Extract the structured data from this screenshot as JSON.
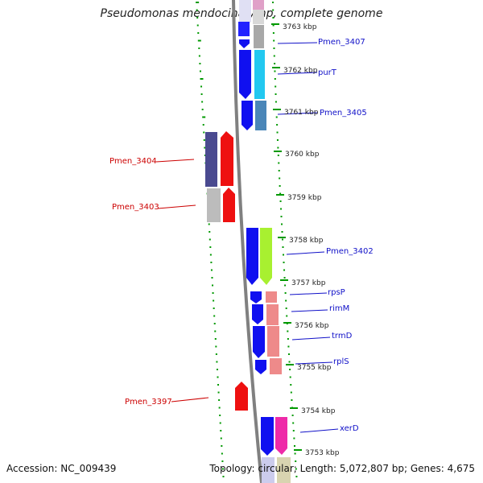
{
  "title": "Pseudomonas mendocina ymp, complete genome",
  "footer": {
    "accession": "Accession: NC_009439",
    "topology": "Topology: circular; Length: 5,072,807 bp; Genes: 4,675"
  },
  "colors": {
    "forward_label": "#1010c8",
    "reverse_label": "#cc0000",
    "backbone": "#808080",
    "scale_ticks": "#009900"
  },
  "scale_labels": [
    "3763 kbp",
    "3762 kbp",
    "3761 kbp",
    "3760 kbp",
    "3759 kbp",
    "3758 kbp",
    "3757 kbp",
    "3756 kbp",
    "3755 kbp",
    "3754 kbp",
    "3753 kbp"
  ],
  "genes_forward": [
    {
      "name": "Pmen_3407",
      "color": "#a8a8a8"
    },
    {
      "name": "purT",
      "color": "#22c8f0"
    },
    {
      "name": "Pmen_3405",
      "color": "#4a86b8"
    },
    {
      "name": "Pmen_3402",
      "color": "#a8f030"
    },
    {
      "name": "rpsP",
      "color": "#ee8a8a"
    },
    {
      "name": "rimM",
      "color": "#ee8a8a"
    },
    {
      "name": "trmD",
      "color": "#ee8a8a"
    },
    {
      "name": "rplS",
      "color": "#ee8a8a"
    },
    {
      "name": "xerD",
      "color": "#ee2aa8"
    }
  ],
  "genes_reverse": [
    {
      "name": "Pmen_3404",
      "color": "#4a4a90"
    },
    {
      "name": "Pmen_3403",
      "color": "#bcbcbc"
    },
    {
      "name": "Pmen_3397",
      "color": "#ee1010"
    }
  ]
}
